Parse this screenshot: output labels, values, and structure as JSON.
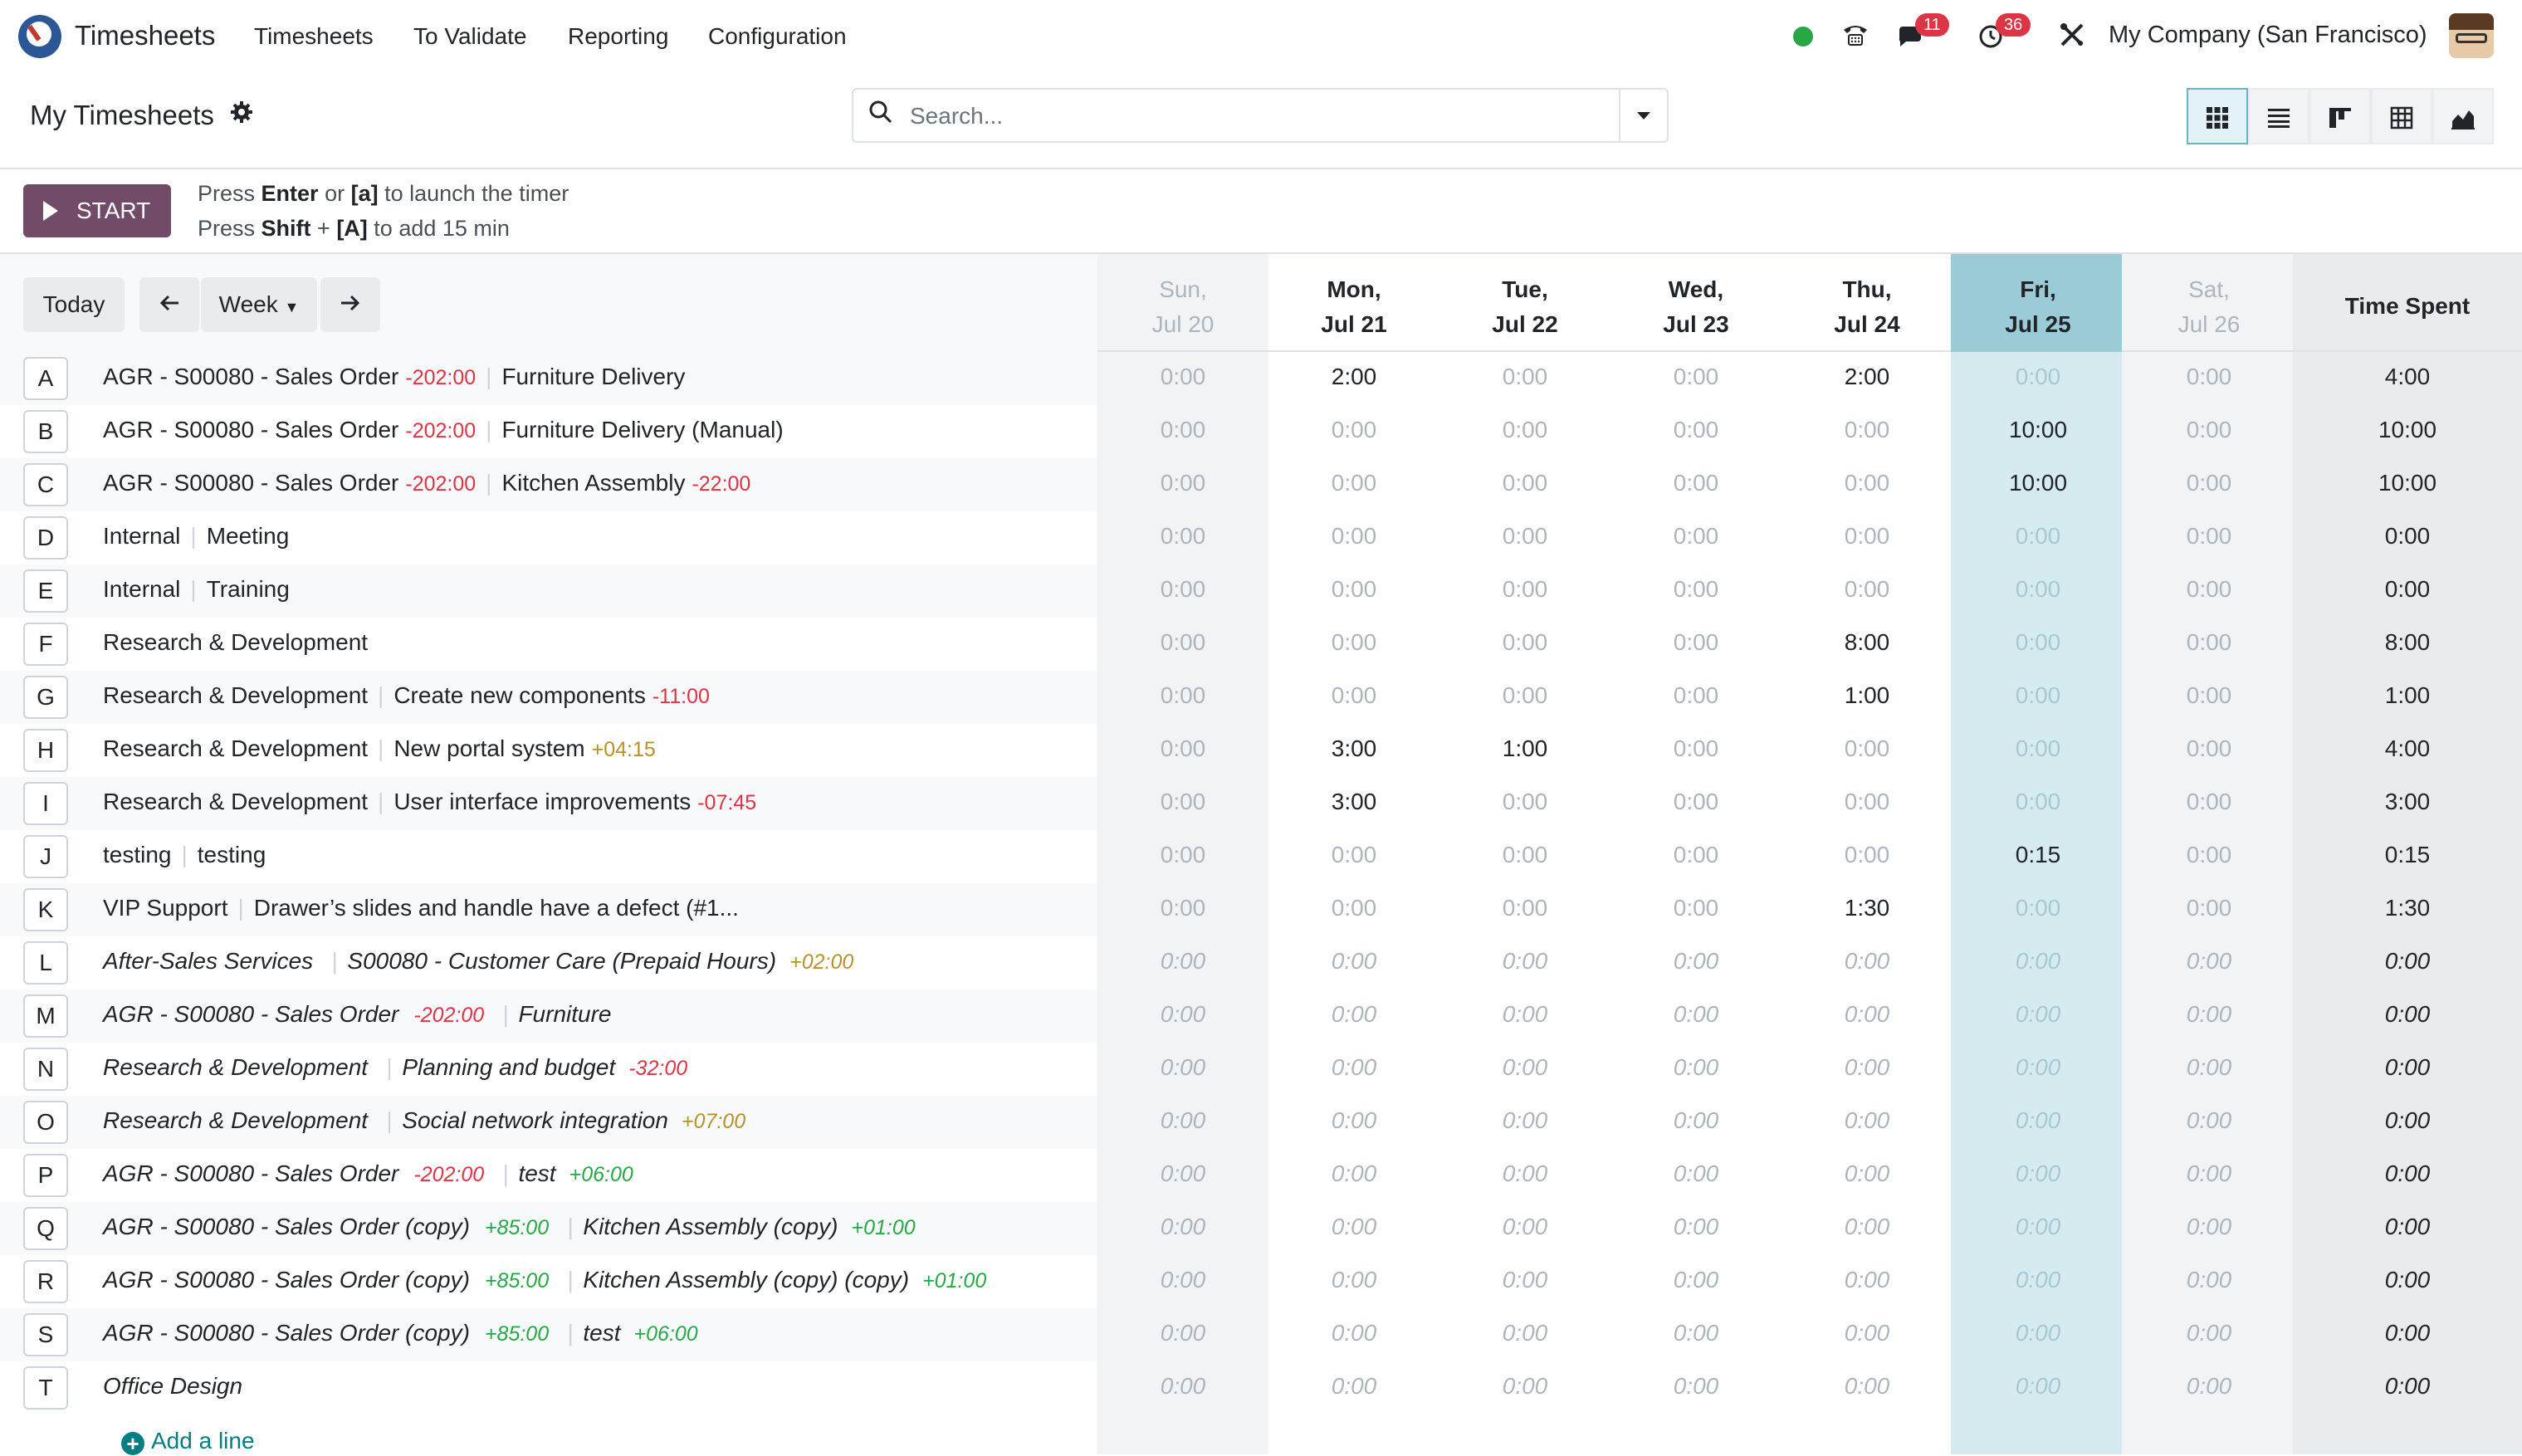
{
  "navbar": {
    "app_name": "Timesheets",
    "menu": [
      "Timesheets",
      "To Validate",
      "Reporting",
      "Configuration"
    ],
    "messages_badge": "11",
    "activities_badge": "36",
    "company": "My Company (San Francisco)"
  },
  "control": {
    "title": "My Timesheets",
    "search_placeholder": "Search..."
  },
  "timer": {
    "start_label": "START",
    "hint1": {
      "a": "Press ",
      "b": "Enter",
      "c": " or ",
      "d": "[a]",
      "e": " to launch the timer"
    },
    "hint2": {
      "a": "Press ",
      "b": "Shift",
      "c": " + ",
      "d": "[A]",
      "e": " to add 15 min"
    }
  },
  "grid": {
    "today_label": "Today",
    "range_label": "Week",
    "total_header": "Time Spent",
    "days": [
      {
        "l1": "Sun,",
        "l2": "Jul 20"
      },
      {
        "l1": "Mon,",
        "l2": "Jul 21"
      },
      {
        "l1": "Tue,",
        "l2": "Jul 22"
      },
      {
        "l1": "Wed,",
        "l2": "Jul 23"
      },
      {
        "l1": "Thu,",
        "l2": "Jul 24"
      },
      {
        "l1": "Fri,",
        "l2": "Jul 25"
      },
      {
        "l1": "Sat,",
        "l2": "Jul 26"
      }
    ],
    "rows": [
      {
        "key": "A",
        "project": "AGR - S00080 - Sales Order",
        "project_delta": "-202:00",
        "task": "Furniture Delivery",
        "task_delta": "",
        "cells": [
          "0:00",
          "2:00",
          "0:00",
          "0:00",
          "2:00",
          "0:00",
          "0:00"
        ],
        "total": "4:00"
      },
      {
        "key": "B",
        "project": "AGR - S00080 - Sales Order",
        "project_delta": "-202:00",
        "task": "Furniture Delivery (Manual)",
        "task_delta": "",
        "cells": [
          "0:00",
          "0:00",
          "0:00",
          "0:00",
          "0:00",
          "10:00",
          "0:00"
        ],
        "total": "10:00"
      },
      {
        "key": "C",
        "project": "AGR - S00080 - Sales Order",
        "project_delta": "-202:00",
        "task": "Kitchen Assembly",
        "task_delta": "-22:00",
        "cells": [
          "0:00",
          "0:00",
          "0:00",
          "0:00",
          "0:00",
          "10:00",
          "0:00"
        ],
        "total": "10:00"
      },
      {
        "key": "D",
        "project": "Internal",
        "project_delta": "",
        "task": "Meeting",
        "task_delta": "",
        "cells": [
          "0:00",
          "0:00",
          "0:00",
          "0:00",
          "0:00",
          "0:00",
          "0:00"
        ],
        "total": "0:00"
      },
      {
        "key": "E",
        "project": "Internal",
        "project_delta": "",
        "task": "Training",
        "task_delta": "",
        "cells": [
          "0:00",
          "0:00",
          "0:00",
          "0:00",
          "0:00",
          "0:00",
          "0:00"
        ],
        "total": "0:00"
      },
      {
        "key": "F",
        "project": "Research & Development",
        "project_delta": "",
        "task": "",
        "task_delta": "",
        "cells": [
          "0:00",
          "0:00",
          "0:00",
          "0:00",
          "8:00",
          "0:00",
          "0:00"
        ],
        "total": "8:00"
      },
      {
        "key": "G",
        "project": "Research & Development",
        "project_delta": "",
        "task": "Create new components",
        "task_delta": "-11:00",
        "cells": [
          "0:00",
          "0:00",
          "0:00",
          "0:00",
          "1:00",
          "0:00",
          "0:00"
        ],
        "total": "1:00"
      },
      {
        "key": "H",
        "project": "Research & Development",
        "project_delta": "",
        "task": "New portal system",
        "task_delta": "+04:15",
        "cells": [
          "0:00",
          "3:00",
          "1:00",
          "0:00",
          "0:00",
          "0:00",
          "0:00"
        ],
        "total": "4:00"
      },
      {
        "key": "I",
        "project": "Research & Development",
        "project_delta": "",
        "task": "User interface improvements",
        "task_delta": "-07:45",
        "cells": [
          "0:00",
          "3:00",
          "0:00",
          "0:00",
          "0:00",
          "0:00",
          "0:00"
        ],
        "total": "3:00"
      },
      {
        "key": "J",
        "project": "testing",
        "project_delta": "",
        "task": "testing",
        "task_delta": "",
        "cells": [
          "0:00",
          "0:00",
          "0:00",
          "0:00",
          "0:00",
          "0:15",
          "0:00"
        ],
        "total": "0:15"
      },
      {
        "key": "K",
        "project": "VIP Support",
        "project_delta": "",
        "task": "Drawer’s slides and handle have a defect (#1...",
        "task_delta": "",
        "cells": [
          "0:00",
          "0:00",
          "0:00",
          "0:00",
          "1:30",
          "0:00",
          "0:00"
        ],
        "total": "1:30"
      },
      {
        "key": "L",
        "project": "After-Sales Services",
        "project_delta": "",
        "task": "S00080 - Customer Care (Prepaid Hours)",
        "task_delta": "+02:00",
        "cells": [
          "0:00",
          "0:00",
          "0:00",
          "0:00",
          "0:00",
          "0:00",
          "0:00"
        ],
        "total": "0:00"
      },
      {
        "key": "M",
        "project": "AGR - S00080 - Sales Order",
        "project_delta": "-202:00",
        "task": "Furniture",
        "task_delta": "",
        "cells": [
          "0:00",
          "0:00",
          "0:00",
          "0:00",
          "0:00",
          "0:00",
          "0:00"
        ],
        "total": "0:00"
      },
      {
        "key": "N",
        "project": "Research & Development",
        "project_delta": "",
        "task": "Planning and budget",
        "task_delta": "-32:00",
        "cells": [
          "0:00",
          "0:00",
          "0:00",
          "0:00",
          "0:00",
          "0:00",
          "0:00"
        ],
        "total": "0:00"
      },
      {
        "key": "O",
        "project": "Research & Development",
        "project_delta": "",
        "task": "Social network integration",
        "task_delta": "+07:00",
        "cells": [
          "0:00",
          "0:00",
          "0:00",
          "0:00",
          "0:00",
          "0:00",
          "0:00"
        ],
        "total": "0:00"
      },
      {
        "key": "P",
        "project": "AGR - S00080 - Sales Order",
        "project_delta": "-202:00",
        "task": "test",
        "task_delta": "+06:00",
        "cells": [
          "0:00",
          "0:00",
          "0:00",
          "0:00",
          "0:00",
          "0:00",
          "0:00"
        ],
        "total": "0:00"
      },
      {
        "key": "Q",
        "project": "AGR - S00080 - Sales Order (copy)",
        "project_delta": "+85:00",
        "task": "Kitchen Assembly (copy)",
        "task_delta": "+01:00",
        "cells": [
          "0:00",
          "0:00",
          "0:00",
          "0:00",
          "0:00",
          "0:00",
          "0:00"
        ],
        "total": "0:00"
      },
      {
        "key": "R",
        "project": "AGR - S00080 - Sales Order (copy)",
        "project_delta": "+85:00",
        "task": "Kitchen Assembly (copy) (copy)",
        "task_delta": "+01:00",
        "cells": [
          "0:00",
          "0:00",
          "0:00",
          "0:00",
          "0:00",
          "0:00",
          "0:00"
        ],
        "total": "0:00"
      },
      {
        "key": "S",
        "project": "AGR - S00080 - Sales Order (copy)",
        "project_delta": "+85:00",
        "task": "test",
        "task_delta": "+06:00",
        "cells": [
          "0:00",
          "0:00",
          "0:00",
          "0:00",
          "0:00",
          "0:00",
          "0:00"
        ],
        "total": "0:00"
      },
      {
        "key": "T",
        "project": "Office Design",
        "project_delta": "",
        "task": "",
        "task_delta": "",
        "cells": [
          "0:00",
          "0:00",
          "0:00",
          "0:00",
          "0:00",
          "0:00",
          "0:00"
        ],
        "total": "0:00"
      }
    ],
    "add_line_label": "Add a line"
  },
  "colors": {
    "accent": "#714b67",
    "today_column": "#d6ebf0",
    "today_header": "#9ccbd8",
    "negative": "#dc3545",
    "positive_green": "#28a745",
    "positive_amber": "#b7922a"
  },
  "icons": [
    "brand-logo",
    "settings-gear-icon",
    "search-icon",
    "caret-down-icon",
    "phone-icon",
    "chat-icon",
    "clock-icon",
    "debug-tools-icon",
    "grid-view-icon",
    "list-view-icon",
    "kanban-view-icon",
    "pivot-view-icon",
    "graph-view-icon",
    "play-icon",
    "arrow-left-icon",
    "arrow-right-icon",
    "plus-circle-icon"
  ]
}
